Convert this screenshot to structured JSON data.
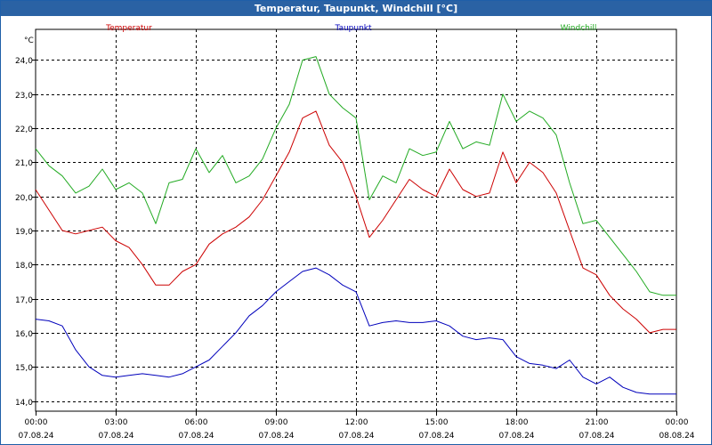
{
  "window": {
    "title": "Temperatur, Taupunkt, Windchill [°C]"
  },
  "colors": {
    "Temperatur": "#cc0000",
    "Taupunkt": "#0000bb",
    "Windchill": "#22aa22",
    "grid": "#000000"
  },
  "chart_data": {
    "type": "line",
    "title": "Temperatur, Taupunkt, Windchill [°C]",
    "ylabel": "°C",
    "xlabel": "",
    "ylim": [
      13.7,
      24.9
    ],
    "xlim": [
      0,
      24
    ],
    "yticks": [
      "14,0",
      "15,0",
      "16,0",
      "17,0",
      "18,0",
      "19,0",
      "20,0",
      "21,0",
      "22,0",
      "23,0",
      "24,0"
    ],
    "xticks": [
      {
        "time": "00:00",
        "date": "07.08.24"
      },
      {
        "time": "03:00",
        "date": "07.08.24"
      },
      {
        "time": "06:00",
        "date": "07.08.24"
      },
      {
        "time": "09:00",
        "date": "07.08.24"
      },
      {
        "time": "12:00",
        "date": "07.08.24"
      },
      {
        "time": "15:00",
        "date": "07.08.24"
      },
      {
        "time": "18:00",
        "date": "07.08.24"
      },
      {
        "time": "21:00",
        "date": "07.08.24"
      },
      {
        "time": "00:00",
        "date": "08.08.24"
      }
    ],
    "grid": true,
    "legend": "top",
    "series": [
      {
        "name": "Temperatur",
        "x": [
          0,
          0.5,
          1,
          1.5,
          2,
          2.5,
          3,
          3.5,
          4,
          4.5,
          5,
          5.5,
          6,
          6.5,
          7,
          7.5,
          8,
          8.5,
          9,
          9.5,
          10,
          10.5,
          11,
          11.5,
          12,
          12.5,
          13,
          13.5,
          14,
          14.5,
          15,
          15.5,
          16,
          16.5,
          17,
          17.5,
          18,
          18.5,
          19,
          19.5,
          20,
          20.5,
          21,
          21.5,
          22,
          22.5,
          23,
          23.5,
          24
        ],
        "values": [
          20.2,
          19.6,
          19.0,
          18.9,
          19.0,
          19.1,
          18.7,
          18.5,
          18.0,
          17.4,
          17.4,
          17.8,
          18.0,
          18.6,
          18.9,
          19.1,
          19.4,
          19.9,
          20.6,
          21.3,
          22.3,
          22.5,
          21.5,
          21.0,
          20.0,
          18.8,
          19.3,
          19.9,
          20.5,
          20.2,
          20.0,
          20.8,
          20.2,
          20.0,
          20.1,
          21.3,
          20.4,
          21.0,
          20.7,
          20.1,
          19.0,
          17.9,
          17.7,
          17.1,
          16.7,
          16.4,
          16.0,
          16.1,
          16.1
        ]
      },
      {
        "name": "Taupunkt",
        "x": [
          0,
          0.5,
          1,
          1.5,
          2,
          2.5,
          3,
          3.5,
          4,
          4.5,
          5,
          5.5,
          6,
          6.5,
          7,
          7.5,
          8,
          8.5,
          9,
          9.5,
          10,
          10.5,
          11,
          11.5,
          12,
          12.5,
          13,
          13.5,
          14,
          14.5,
          15,
          15.5,
          16,
          16.5,
          17,
          17.5,
          18,
          18.5,
          19,
          19.5,
          20,
          20.5,
          21,
          21.5,
          22,
          22.5,
          23,
          23.5,
          24
        ],
        "values": [
          16.4,
          16.35,
          16.2,
          15.5,
          15.0,
          14.75,
          14.7,
          14.75,
          14.8,
          14.75,
          14.7,
          14.8,
          15.0,
          15.2,
          15.6,
          16.0,
          16.5,
          16.8,
          17.2,
          17.5,
          17.8,
          17.9,
          17.7,
          17.4,
          17.2,
          16.2,
          16.3,
          16.35,
          16.3,
          16.3,
          16.35,
          16.2,
          15.9,
          15.8,
          15.85,
          15.8,
          15.3,
          15.1,
          15.05,
          14.95,
          15.2,
          14.7,
          14.5,
          14.7,
          14.4,
          14.25,
          14.2,
          14.2,
          14.2
        ]
      },
      {
        "name": "Windchill",
        "x": [
          0,
          0.5,
          1,
          1.5,
          2,
          2.5,
          3,
          3.5,
          4,
          4.5,
          5,
          5.5,
          6,
          6.5,
          7,
          7.5,
          8,
          8.5,
          9,
          9.5,
          10,
          10.5,
          11,
          11.5,
          12,
          12.5,
          13,
          13.5,
          14,
          14.5,
          15,
          15.5,
          16,
          16.5,
          17,
          17.5,
          18,
          18.5,
          19,
          19.5,
          20,
          20.5,
          21,
          21.5,
          22,
          22.5,
          23,
          23.5,
          24
        ],
        "values": [
          21.4,
          20.9,
          20.6,
          20.1,
          20.3,
          20.8,
          20.2,
          20.4,
          20.1,
          19.2,
          20.4,
          20.5,
          21.4,
          20.7,
          21.2,
          20.4,
          20.6,
          21.1,
          22.0,
          22.7,
          24.0,
          24.1,
          23.0,
          22.6,
          22.3,
          19.9,
          20.6,
          20.4,
          21.4,
          21.2,
          21.3,
          22.2,
          21.4,
          21.6,
          21.5,
          23.0,
          22.2,
          22.5,
          22.3,
          21.8,
          20.4,
          19.2,
          19.3,
          18.8,
          18.3,
          17.8,
          17.2,
          17.1,
          17.1
        ]
      }
    ]
  }
}
